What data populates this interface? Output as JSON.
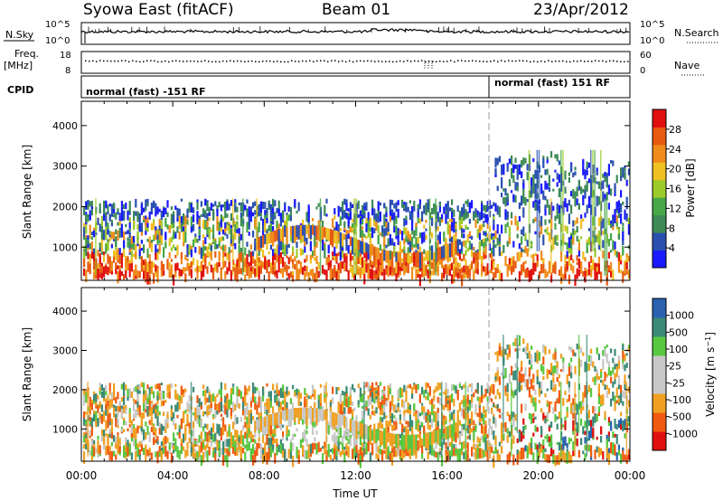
{
  "header": {
    "station": "Syowa East (fitACF)",
    "beam": "Beam 01",
    "date": "23/Apr/2012"
  },
  "strips": {
    "nsky_label": "N.Sky",
    "nsky_top": "10^5",
    "nsky_bottom": "10^0",
    "nsearch_label": "N.Search",
    "nsearch_top": "10^5",
    "nsearch_bottom": "10^0",
    "freq_label_1": "Freq.",
    "freq_label_2": "[MHz]",
    "freq_top": "18",
    "freq_bottom": "8",
    "nave_label": "Nave",
    "nave_top": "60",
    "nave_bottom": "0",
    "cpid_label": "CPID",
    "cpid_mode_1": "normal (fast) -151 RF",
    "cpid_mode_2": "normal (fast) 151 RF"
  },
  "xaxis": {
    "label": "Time UT",
    "ticks": [
      "00:00",
      "04:00",
      "08:00",
      "12:00",
      "16:00",
      "20:00",
      "00:00"
    ]
  },
  "colors": {
    "power_scale": [
      "#1a1aff",
      "#2a50b0",
      "#3d8a56",
      "#48a848",
      "#9ccc2a",
      "#f0c020",
      "#f08c1c",
      "#e85a10",
      "#e01010"
    ],
    "velocity_scale": [
      "#e01010",
      "#f05a10",
      "#f0a020",
      "#c8c8c8",
      "#c8c8c8",
      "#58c840",
      "#3a8a78",
      "#2a62b0"
    ]
  },
  "chart_data": [
    {
      "type": "heatmap",
      "panel": "power",
      "ylabel": "Slant Range [km]",
      "ylim": [
        180,
        4600
      ],
      "yticks": [
        "1000",
        "2000",
        "3000",
        "4000"
      ],
      "xlim": [
        0,
        24
      ],
      "xticks": [
        "00:00",
        "04:00",
        "08:00",
        "12:00",
        "16:00",
        "20:00",
        "00:00"
      ],
      "colorbar": {
        "title": "Power [dB]",
        "ticks": [
          "4",
          "8",
          "12",
          "16",
          "20",
          "24",
          "28"
        ],
        "range": [
          0,
          30
        ]
      },
      "cpid_change_hour": 18
    },
    {
      "type": "heatmap",
      "panel": "velocity",
      "ylabel": "Slant Range [km]",
      "ylim": [
        180,
        4600
      ],
      "yticks": [
        "1000",
        "2000",
        "3000",
        "4000"
      ],
      "xlim": [
        0,
        24
      ],
      "xticks": [
        "00:00",
        "04:00",
        "08:00",
        "12:00",
        "16:00",
        "20:00",
        "00:00"
      ],
      "colorbar": {
        "title": "Velocity [m s^-1]",
        "ticks": [
          "1000",
          "500",
          "100",
          "25",
          "-25",
          "-100",
          "-500",
          "-1000"
        ]
      },
      "cpid_change_hour": 18
    }
  ]
}
